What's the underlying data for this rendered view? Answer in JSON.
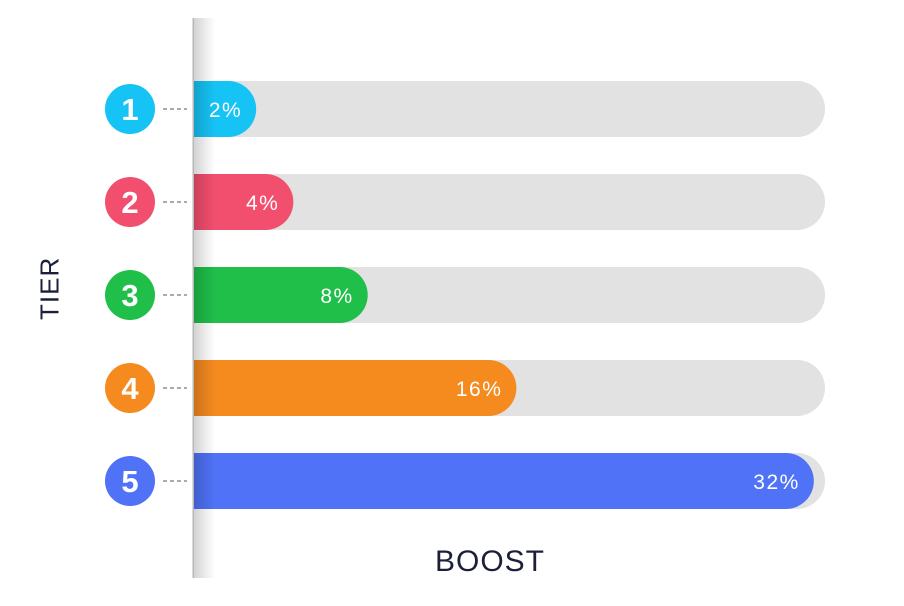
{
  "chart_data": {
    "type": "bar",
    "orientation": "horizontal",
    "xlabel": "BOOST",
    "ylabel": "TIER",
    "xlim": [
      0,
      34
    ],
    "grid": false,
    "categories": [
      "1",
      "2",
      "3",
      "4",
      "5"
    ],
    "values": [
      2,
      4,
      8,
      16,
      32
    ],
    "value_labels": [
      "2%",
      "4%",
      "8%",
      "16%",
      "32%"
    ],
    "colors": [
      "#16c3f5",
      "#f24e6e",
      "#1fbf4a",
      "#f58a1f",
      "#4f72f7"
    ],
    "track_color": "#e2e2e2"
  }
}
